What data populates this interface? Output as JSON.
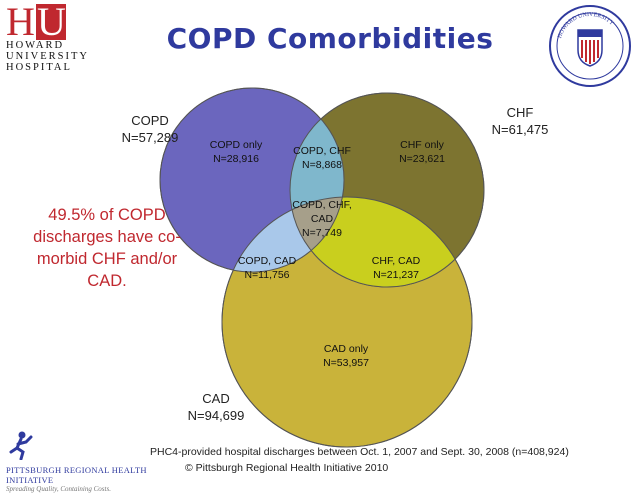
{
  "header": {
    "logo": {
      "initials": "HU",
      "line1": "HOWARD",
      "line2": "UNIVERSITY",
      "line3": "HOSPITAL"
    },
    "title": "COPD Comorbidities",
    "seal_text": "HOWARD UNIVERSITY 1867"
  },
  "note": "49.5% of COPD discharges have co-morbid CHF and/or CAD.",
  "sets": {
    "copd": {
      "name": "COPD",
      "n": "N=57,289",
      "color": "#6b66be"
    },
    "chf": {
      "name": "CHF",
      "n": "N=61,475",
      "color": "#7d7430"
    },
    "cad": {
      "name": "CAD",
      "n": "N=94,699",
      "color": "#c9b33a"
    }
  },
  "regions": {
    "copd_only": {
      "label": "COPD only",
      "n": "N=28,916"
    },
    "copd_chf": {
      "label": "COPD, CHF",
      "n": "N=8,868"
    },
    "chf_only": {
      "label": "CHF only",
      "n": "N=23,621"
    },
    "all_three": {
      "label1": "COPD, CHF,",
      "label2": "CAD",
      "n": "N=7,749"
    },
    "copd_cad": {
      "label": "COPD, CAD",
      "n": "N=11,756"
    },
    "chf_cad": {
      "label": "CHF, CAD",
      "n": "N=21,237"
    },
    "cad_only": {
      "label": "CAD only",
      "n": "N=53,957"
    }
  },
  "region_colors": {
    "copd_chf": "#7fb7cc",
    "copd_cad": "#a9c8ea",
    "chf_cad": "#c9cf1e",
    "all_three": "#a69f8a"
  },
  "footer": {
    "source": "PHC4-provided hospital discharges between Oct. 1, 2007 and Sept. 30, 2008 (n=408,924)",
    "copyright": "© Pittsburgh Regional Health Initiative 2010",
    "org_name": "PITTSBURGH REGIONAL HEALTH INITIATIVE",
    "org_tagline": "Spreading Quality, Containing Costs."
  }
}
